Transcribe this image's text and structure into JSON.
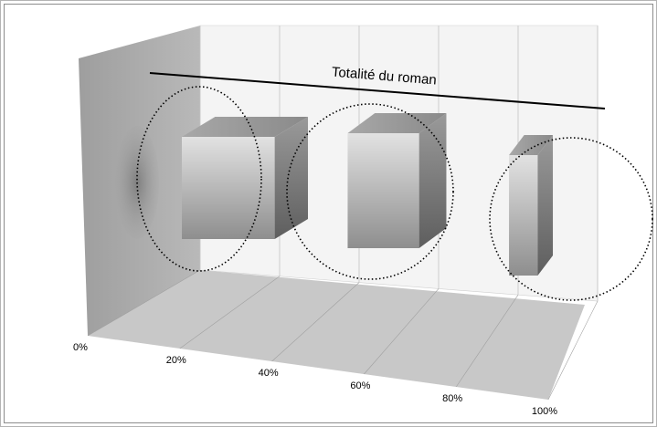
{
  "chart_data": {
    "type": "bar",
    "style": "3d-column",
    "title": "",
    "xlabel": "",
    "ylabel": "",
    "x_axis": {
      "min": 0,
      "max": 100,
      "ticks": [
        "0%",
        "20%",
        "40%",
        "60%",
        "80%",
        "100%"
      ]
    },
    "grid": true,
    "bars": [
      {
        "x": 13,
        "depth": 12
      },
      {
        "x": 54,
        "depth": 9
      },
      {
        "x": 91,
        "depth": 3
      }
    ],
    "annotations": {
      "span_label": "Totalité du roman",
      "span_from": 0,
      "span_to": 100,
      "circles": 3
    },
    "colors": {
      "bar_light": "#dcdcdc",
      "bar_dark": "#7a7a7a",
      "floor": "#c8c8c8",
      "side_wall": "#a9a9a9",
      "back_wall": "#f4f4f4"
    }
  }
}
